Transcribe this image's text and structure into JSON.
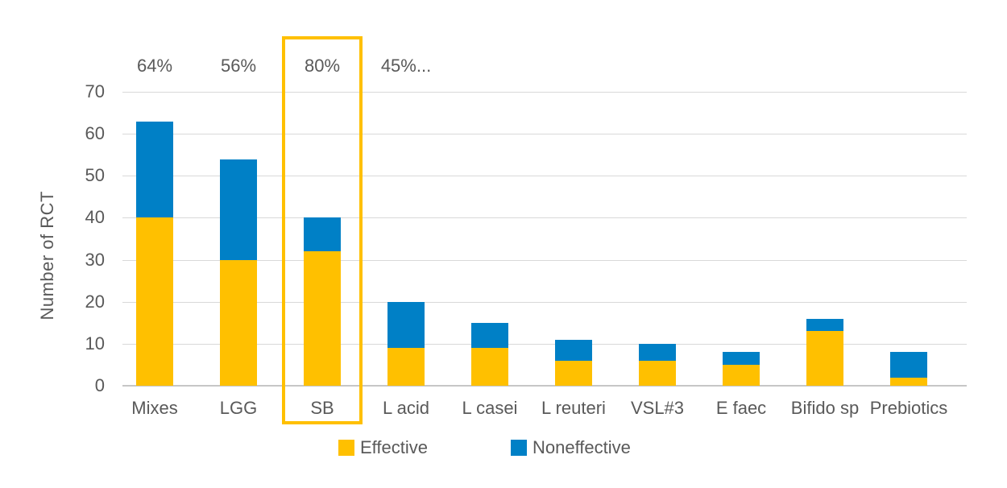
{
  "chart_data": {
    "type": "bar",
    "stacked": true,
    "title": "",
    "xlabel": "",
    "ylabel": "Number of RCT",
    "ylim": [
      0,
      70
    ],
    "yticks": [
      0,
      10,
      20,
      30,
      40,
      50,
      60,
      70
    ],
    "grid": true,
    "legend_position": "bottom",
    "categories": [
      "Mixes",
      "LGG",
      "SB",
      "L acid",
      "L casei",
      "L reuteri",
      "VSL#3",
      "E faec",
      "Bifido sp",
      "Prebiotics"
    ],
    "series": [
      {
        "name": "Effective",
        "color": "#FFC000",
        "values": [
          40,
          30,
          32,
          9,
          9,
          6,
          6,
          5,
          13,
          2
        ]
      },
      {
        "name": "Noneffective",
        "color": "#0080C6",
        "values": [
          23,
          24,
          8,
          11,
          6,
          5,
          4,
          3,
          3,
          6
        ]
      }
    ],
    "annotations": [
      "64%",
      "56%",
      "80%",
      "45%...",
      "",
      "",
      "",
      "",
      "",
      ""
    ],
    "highlighted_category": "SB",
    "highlight_color": "#FFC000"
  },
  "legend": {
    "items": [
      {
        "label": "Effective",
        "color": "#FFC000"
      },
      {
        "label": "Noneffective",
        "color": "#0080C6"
      }
    ]
  },
  "colors": {
    "background": "#FFFFFF",
    "text": "#595959",
    "gridline": "#D9D9D9",
    "axis_line": "#C6C6C6"
  }
}
